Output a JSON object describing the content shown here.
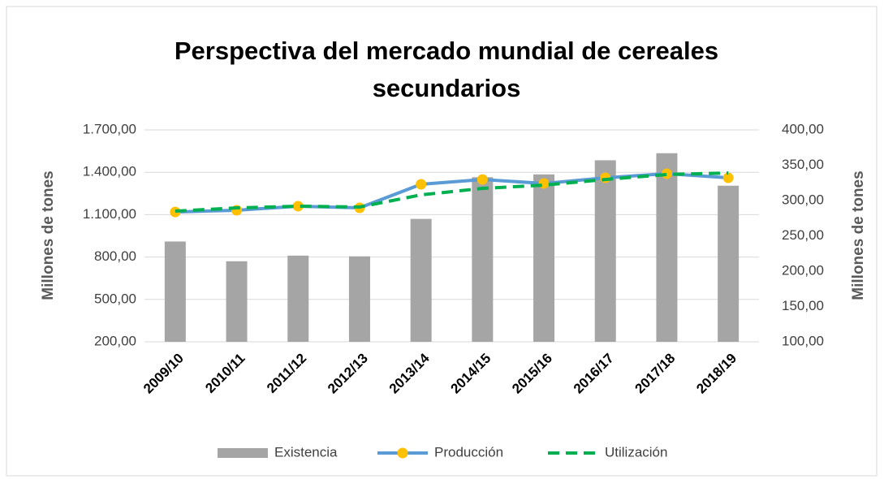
{
  "chart_data": {
    "type": "bar_line",
    "title": "Perspectiva del mercado mundial de cereales secundarios",
    "ylabel": "Millones de tones",
    "y2label": "Millones de tones",
    "categories": [
      "2009/10",
      "2010/11",
      "2011/12",
      "2012/13",
      "2013/14",
      "2014/15",
      "2015/16",
      "2016/17",
      "2017/18",
      "2018/19"
    ],
    "series": [
      {
        "name": "Existencia",
        "type": "bar",
        "axis": "y2",
        "color": "#a5a5a5",
        "values": [
          242,
          214,
          222,
          221,
          274,
          333,
          337,
          357,
          367,
          321
        ]
      },
      {
        "name": "Producción",
        "type": "line",
        "axis": "y",
        "color": "#5b9bd5",
        "marker_color": "#ffc000",
        "values": [
          1119,
          1131,
          1160,
          1148,
          1315,
          1349,
          1321,
          1361,
          1390,
          1361
        ]
      },
      {
        "name": "Utilización",
        "type": "line",
        "axis": "y",
        "dashed": true,
        "color": "#00b050",
        "values": [
          1125,
          1148,
          1160,
          1154,
          1240,
          1286,
          1309,
          1349,
          1384,
          1395
        ]
      }
    ],
    "ylim": [
      200,
      1700
    ],
    "yticks": [
      {
        "value": 200,
        "label": "200,00"
      },
      {
        "value": 500,
        "label": "500,00"
      },
      {
        "value": 800,
        "label": "800,00"
      },
      {
        "value": 1100,
        "label": "1.100,00"
      },
      {
        "value": 1400,
        "label": "1.400,00"
      },
      {
        "value": 1700,
        "label": "1.700,00"
      }
    ],
    "y2lim": [
      100,
      400
    ],
    "y2ticks": [
      {
        "value": 100,
        "label": "100,00"
      },
      {
        "value": 150,
        "label": "150,00"
      },
      {
        "value": 200,
        "label": "200,00"
      },
      {
        "value": 250,
        "label": "250,00"
      },
      {
        "value": 300,
        "label": "300,00"
      },
      {
        "value": 350,
        "label": "350,00"
      },
      {
        "value": 400,
        "label": "400,00"
      }
    ],
    "grid": true,
    "legend": "bottom"
  }
}
